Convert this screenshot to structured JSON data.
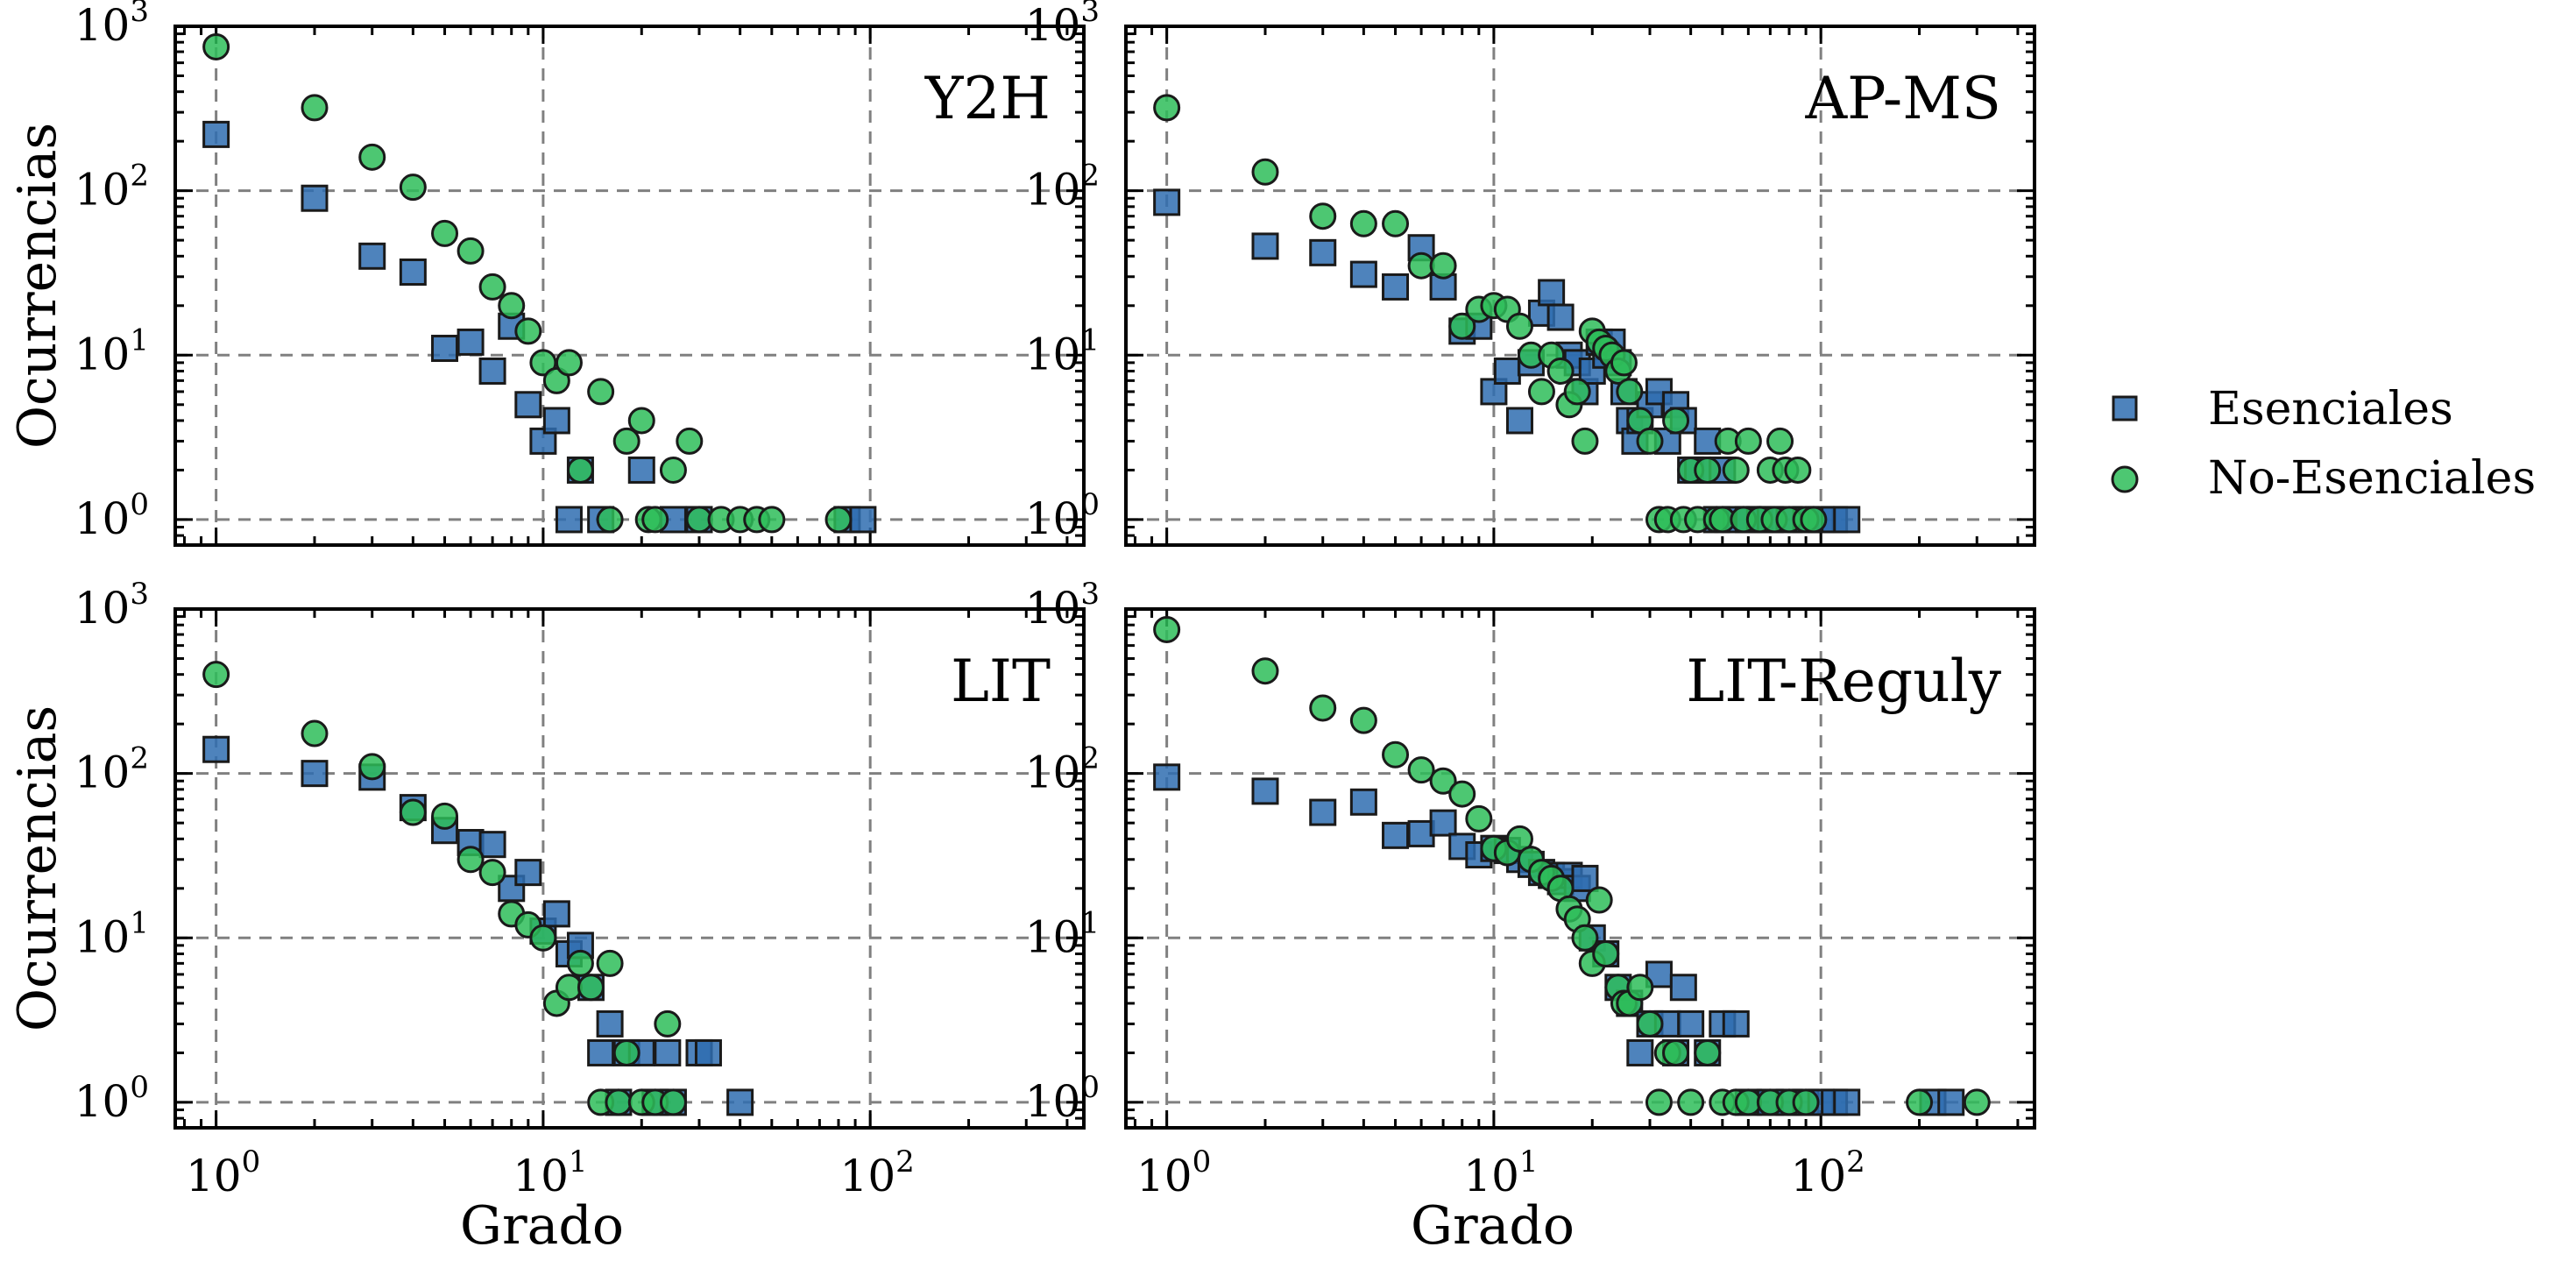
{
  "figure": {
    "legend": {
      "placement": "right",
      "entries": [
        {
          "name": "Esenciales",
          "marker": "square",
          "color": "#2f6db0"
        },
        {
          "name": "No-Esenciales",
          "marker": "circle",
          "color": "#2ebd59"
        }
      ]
    },
    "ylabel": "Ocurrencias",
    "xlabel": "Grado",
    "ytick_base": "10",
    "xtick_base": "10"
  },
  "chart_data": [
    {
      "type": "scatter",
      "title": "Y2H",
      "xlabel": "",
      "ylabel": "Ocurrencias",
      "xscale": "log",
      "yscale": "log",
      "xlim": [
        0.75,
        450
      ],
      "ylim": [
        0.7,
        1000
      ],
      "xticks": [
        1,
        10,
        100
      ],
      "yticks": [
        1,
        10,
        100,
        1000
      ],
      "xtick_exponents": [
        "0",
        "1",
        "2"
      ],
      "ytick_exponents": [
        "0",
        "1",
        "2",
        "3"
      ],
      "grid": true,
      "series": [
        {
          "name": "Esenciales",
          "marker": "square",
          "x": [
            1,
            2,
            3,
            4,
            5,
            6,
            7,
            8,
            9,
            10,
            11,
            12,
            13,
            15,
            20,
            25,
            30,
            85,
            95
          ],
          "y": [
            220,
            90,
            40,
            32,
            11,
            12,
            8,
            15,
            5,
            3,
            4,
            1,
            2,
            1,
            2,
            1,
            1,
            1,
            1
          ]
        },
        {
          "name": "No-Esenciales",
          "marker": "circle",
          "x": [
            1,
            2,
            3,
            4,
            5,
            6,
            7,
            8,
            9,
            10,
            11,
            12,
            13,
            15,
            16,
            18,
            20,
            21,
            22,
            25,
            28,
            30,
            35,
            40,
            45,
            50,
            80
          ],
          "y": [
            750,
            320,
            160,
            105,
            55,
            43,
            26,
            20,
            14,
            9,
            7,
            9,
            2,
            6,
            1,
            3,
            4,
            1,
            1,
            2,
            3,
            1,
            1,
            1,
            1,
            1,
            1
          ]
        }
      ]
    },
    {
      "type": "scatter",
      "title": "AP-MS",
      "xlabel": "",
      "ylabel": "",
      "xscale": "log",
      "yscale": "log",
      "xlim": [
        0.75,
        450
      ],
      "ylim": [
        0.7,
        1000
      ],
      "xticks": [
        1,
        10,
        100
      ],
      "yticks": [
        1,
        10,
        100,
        1000
      ],
      "xtick_exponents": [
        "0",
        "1",
        "2"
      ],
      "ytick_exponents": [
        "0",
        "1",
        "2",
        "3"
      ],
      "grid": true,
      "series": [
        {
          "name": "Esenciales",
          "marker": "square",
          "x": [
            1,
            2,
            3,
            4,
            5,
            6,
            7,
            8,
            9,
            10,
            11,
            12,
            13,
            14,
            15,
            16,
            17,
            18,
            19,
            20,
            21,
            22,
            23,
            24,
            25,
            26,
            27,
            28,
            30,
            32,
            34,
            36,
            38,
            40,
            42,
            45,
            48,
            50,
            55,
            60,
            65,
            70,
            80,
            90,
            100,
            110,
            120
          ],
          "y": [
            85,
            46,
            42,
            31,
            26,
            45,
            26,
            14,
            15,
            6,
            8,
            4,
            9,
            18,
            24,
            17,
            10,
            9,
            6,
            8,
            12,
            10,
            12,
            9,
            6,
            4,
            3,
            4,
            5,
            6,
            3,
            5,
            4,
            2,
            2,
            3,
            1,
            2,
            1,
            1,
            1,
            1,
            1,
            1,
            1,
            1,
            1
          ]
        },
        {
          "name": "No-Esenciales",
          "marker": "circle",
          "x": [
            1,
            2,
            3,
            4,
            5,
            6,
            7,
            8,
            9,
            10,
            11,
            12,
            13,
            14,
            15,
            16,
            17,
            18,
            19,
            20,
            21,
            22,
            23,
            24,
            25,
            26,
            28,
            30,
            32,
            34,
            36,
            38,
            40,
            42,
            45,
            48,
            50,
            52,
            55,
            58,
            60,
            65,
            70,
            72,
            75,
            78,
            80,
            85,
            90,
            95
          ],
          "y": [
            320,
            130,
            70,
            63,
            63,
            35,
            35,
            15,
            19,
            20,
            19,
            15,
            10,
            6,
            10,
            8,
            5,
            6,
            3,
            14,
            12,
            11,
            10,
            8,
            9,
            6,
            4,
            3,
            1,
            1,
            4,
            1,
            2,
            1,
            2,
            1,
            1,
            3,
            2,
            1,
            3,
            1,
            2,
            1,
            3,
            2,
            1,
            2,
            1,
            1
          ]
        }
      ]
    },
    {
      "type": "scatter",
      "title": "LIT",
      "xlabel": "Grado",
      "ylabel": "Ocurrencias",
      "xscale": "log",
      "yscale": "log",
      "xlim": [
        0.75,
        450
      ],
      "ylim": [
        0.7,
        1000
      ],
      "xticks": [
        1,
        10,
        100
      ],
      "yticks": [
        1,
        10,
        100,
        1000
      ],
      "xtick_exponents": [
        "0",
        "1",
        "2"
      ],
      "ytick_exponents": [
        "0",
        "1",
        "2",
        "3"
      ],
      "grid": true,
      "series": [
        {
          "name": "Esenciales",
          "marker": "square",
          "x": [
            1,
            2,
            3,
            4,
            5,
            6,
            7,
            8,
            9,
            10,
            11,
            12,
            13,
            14,
            15,
            16,
            17,
            18,
            20,
            22,
            24,
            25,
            30,
            32,
            40
          ],
          "y": [
            140,
            100,
            95,
            62,
            45,
            38,
            37,
            20,
            25,
            11,
            14,
            8,
            9,
            5,
            2,
            3,
            1,
            2,
            2,
            1,
            2,
            1,
            2,
            2,
            1
          ]
        },
        {
          "name": "No-Esenciales",
          "marker": "circle",
          "x": [
            1,
            2,
            3,
            4,
            5,
            6,
            7,
            8,
            9,
            10,
            11,
            12,
            13,
            14,
            15,
            16,
            17,
            18,
            20,
            22,
            24,
            25
          ],
          "y": [
            400,
            175,
            110,
            58,
            55,
            30,
            25,
            14,
            12,
            10,
            4,
            5,
            7,
            5,
            1,
            7,
            1,
            2,
            1,
            1,
            3,
            1
          ]
        }
      ]
    },
    {
      "type": "scatter",
      "title": "LIT-Reguly",
      "xlabel": "Grado",
      "ylabel": "",
      "xscale": "log",
      "yscale": "log",
      "xlim": [
        0.75,
        450
      ],
      "ylim": [
        0.7,
        1000
      ],
      "xticks": [
        1,
        10,
        100
      ],
      "yticks": [
        1,
        10,
        100,
        1000
      ],
      "xtick_exponents": [
        "0",
        "1",
        "2"
      ],
      "ytick_exponents": [
        "0",
        "1",
        "2",
        "3"
      ],
      "grid": true,
      "series": [
        {
          "name": "Esenciales",
          "marker": "square",
          "x": [
            1,
            2,
            3,
            4,
            5,
            6,
            7,
            8,
            9,
            10,
            11,
            12,
            13,
            14,
            15,
            16,
            17,
            18,
            19,
            20,
            22,
            24,
            26,
            28,
            30,
            32,
            34,
            36,
            38,
            40,
            45,
            50,
            55,
            60,
            70,
            80,
            90,
            100,
            110,
            120,
            220,
            250
          ],
          "y": [
            95,
            78,
            58,
            67,
            42,
            43,
            50,
            36,
            32,
            35,
            34,
            30,
            28,
            25,
            24,
            22,
            24,
            20,
            23,
            10,
            8,
            5,
            4,
            2,
            3,
            6,
            3,
            2,
            5,
            3,
            2,
            3,
            3,
            1,
            1,
            1,
            1,
            1,
            1,
            1,
            1,
            1
          ]
        },
        {
          "name": "No-Esenciales",
          "marker": "circle",
          "x": [
            1,
            2,
            3,
            4,
            5,
            6,
            7,
            8,
            9,
            10,
            11,
            12,
            13,
            14,
            15,
            16,
            17,
            18,
            19,
            20,
            21,
            22,
            24,
            25,
            26,
            28,
            30,
            32,
            34,
            36,
            40,
            45,
            50,
            55,
            60,
            70,
            80,
            90,
            200,
            300
          ],
          "y": [
            750,
            420,
            250,
            210,
            130,
            105,
            90,
            75,
            53,
            35,
            33,
            40,
            30,
            25,
            23,
            20,
            15,
            13,
            10,
            7,
            17,
            8,
            5,
            4,
            4,
            5,
            3,
            1,
            2,
            2,
            1,
            2,
            1,
            1,
            1,
            1,
            1,
            1,
            1,
            1
          ]
        }
      ]
    }
  ]
}
